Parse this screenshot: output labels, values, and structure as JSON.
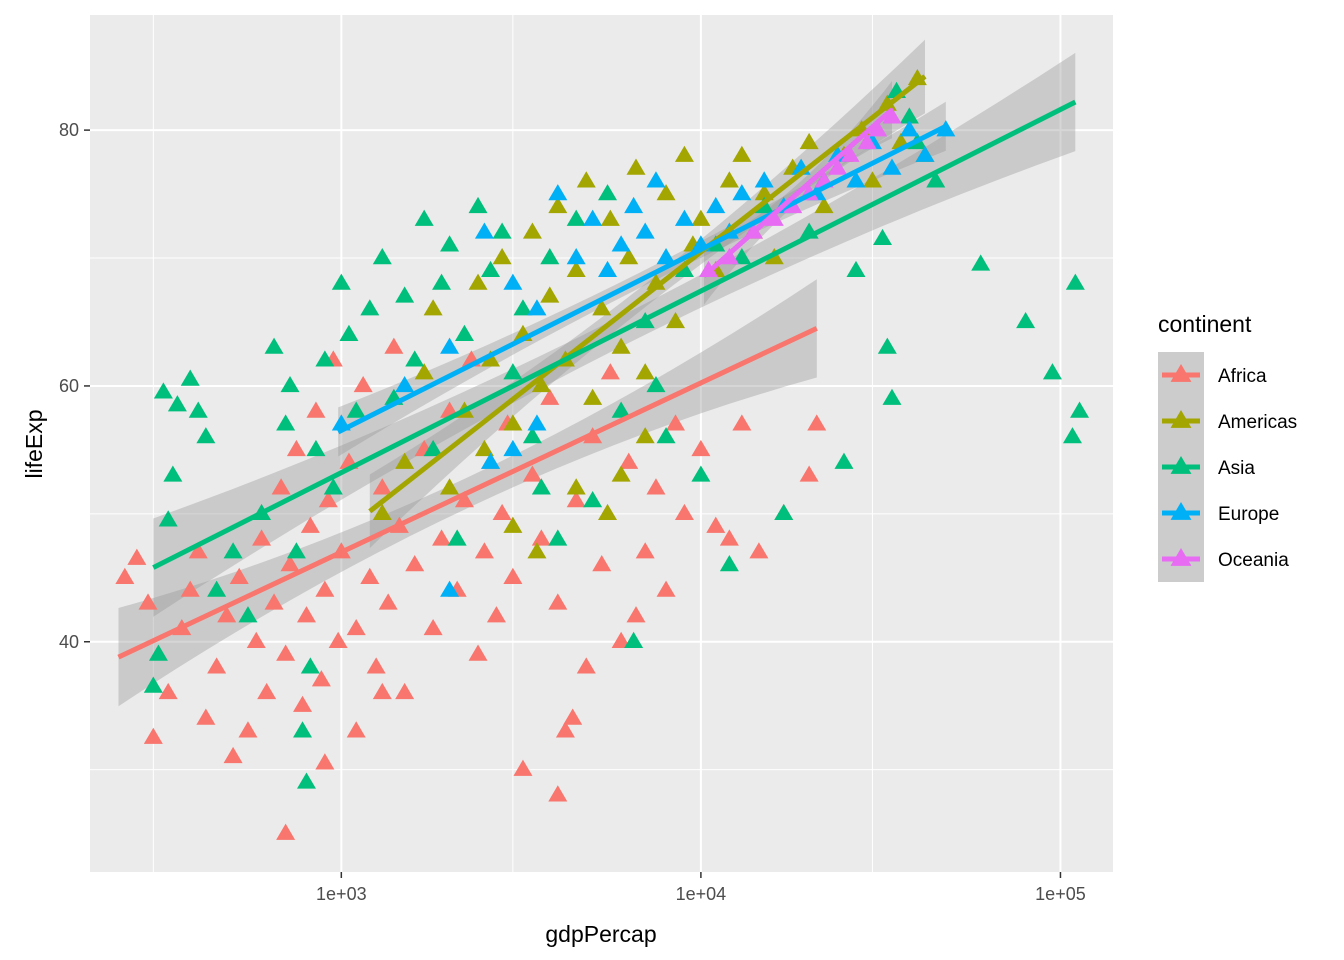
{
  "chart_data": {
    "type": "scatter",
    "title": "",
    "xlabel": "gdpPercap",
    "ylabel": "lifeExp",
    "x_scale": "log10",
    "xlim": [
      200,
      140000
    ],
    "ylim": [
      22,
      89
    ],
    "x_ticks": [
      {
        "value": 1000,
        "label": "1e+03"
      },
      {
        "value": 10000,
        "label": "1e+04"
      },
      {
        "value": 100000,
        "label": "1e+05"
      }
    ],
    "y_ticks": [
      {
        "value": 40,
        "label": "40"
      },
      {
        "value": 60,
        "label": "60"
      },
      {
        "value": 80,
        "label": "80"
      }
    ],
    "grid": true,
    "marker": "triangle",
    "legend": {
      "title": "continent",
      "placement": "right"
    },
    "series": [
      {
        "name": "Africa",
        "color": "#F8766D",
        "fit": {
          "x": [
            240,
            21000
          ],
          "y": [
            38.8,
            64.5
          ],
          "band": 1.2
        },
        "points": [
          [
            250,
            45
          ],
          [
            270,
            46.5
          ],
          [
            290,
            43
          ],
          [
            300,
            32.5
          ],
          [
            330,
            36
          ],
          [
            360,
            41
          ],
          [
            380,
            44
          ],
          [
            400,
            47
          ],
          [
            420,
            34
          ],
          [
            450,
            38
          ],
          [
            480,
            42
          ],
          [
            500,
            31
          ],
          [
            520,
            45
          ],
          [
            550,
            33
          ],
          [
            580,
            40
          ],
          [
            600,
            48
          ],
          [
            620,
            36
          ],
          [
            650,
            43
          ],
          [
            680,
            52
          ],
          [
            700,
            39
          ],
          [
            720,
            46
          ],
          [
            750,
            55
          ],
          [
            780,
            35
          ],
          [
            800,
            42
          ],
          [
            820,
            49
          ],
          [
            850,
            58
          ],
          [
            880,
            37
          ],
          [
            900,
            44
          ],
          [
            920,
            51
          ],
          [
            950,
            62
          ],
          [
            980,
            40
          ],
          [
            1000,
            47
          ],
          [
            1050,
            54
          ],
          [
            1100,
            41
          ],
          [
            1150,
            60
          ],
          [
            1200,
            45
          ],
          [
            1250,
            38
          ],
          [
            1300,
            52
          ],
          [
            1350,
            43
          ],
          [
            1400,
            63
          ],
          [
            1450,
            49
          ],
          [
            1500,
            36
          ],
          [
            1600,
            46
          ],
          [
            1700,
            55
          ],
          [
            1800,
            41
          ],
          [
            1900,
            48
          ],
          [
            2000,
            58
          ],
          [
            2100,
            44
          ],
          [
            2200,
            51
          ],
          [
            2300,
            62
          ],
          [
            2400,
            39
          ],
          [
            2500,
            47
          ],
          [
            2600,
            54
          ],
          [
            2700,
            42
          ],
          [
            2800,
            50
          ],
          [
            2900,
            57
          ],
          [
            3000,
            45
          ],
          [
            3200,
            30
          ],
          [
            3400,
            53
          ],
          [
            3600,
            48
          ],
          [
            3800,
            59
          ],
          [
            4000,
            43
          ],
          [
            4200,
            33
          ],
          [
            4500,
            51
          ],
          [
            4800,
            38
          ],
          [
            5000,
            56
          ],
          [
            5300,
            46
          ],
          [
            5600,
            61
          ],
          [
            6000,
            40
          ],
          [
            6300,
            54
          ],
          [
            6600,
            42
          ],
          [
            7000,
            47
          ],
          [
            7500,
            52
          ],
          [
            8000,
            44
          ],
          [
            8500,
            57
          ],
          [
            9000,
            50
          ],
          [
            10000,
            55
          ],
          [
            11000,
            49
          ],
          [
            12000,
            48
          ],
          [
            13000,
            57
          ],
          [
            14500,
            47
          ],
          [
            17000,
            50
          ],
          [
            20000,
            53
          ],
          [
            21000,
            57
          ],
          [
            700,
            25
          ],
          [
            900,
            30.5
          ],
          [
            1100,
            33
          ],
          [
            1300,
            36
          ],
          [
            4000,
            28
          ],
          [
            4400,
            34
          ]
        ]
      },
      {
        "name": "Americas",
        "color": "#A3A500",
        "fit": {
          "x": [
            1200,
            42000
          ],
          "y": [
            50.2,
            84.2
          ],
          "band": 0.9
        },
        "points": [
          [
            1300,
            50
          ],
          [
            1500,
            54
          ],
          [
            1700,
            61
          ],
          [
            1800,
            66
          ],
          [
            2000,
            52
          ],
          [
            2200,
            58
          ],
          [
            2400,
            68
          ],
          [
            2600,
            62
          ],
          [
            2800,
            70
          ],
          [
            3000,
            57
          ],
          [
            3200,
            64
          ],
          [
            3400,
            72
          ],
          [
            3600,
            60
          ],
          [
            3800,
            67
          ],
          [
            4000,
            74
          ],
          [
            4200,
            62
          ],
          [
            4500,
            69
          ],
          [
            4800,
            76
          ],
          [
            5000,
            59
          ],
          [
            5300,
            66
          ],
          [
            5600,
            73
          ],
          [
            6000,
            63
          ],
          [
            6300,
            70
          ],
          [
            6600,
            77
          ],
          [
            7000,
            61
          ],
          [
            7500,
            68
          ],
          [
            8000,
            75
          ],
          [
            8500,
            65
          ],
          [
            9000,
            78
          ],
          [
            9500,
            71
          ],
          [
            10000,
            73
          ],
          [
            11000,
            69
          ],
          [
            12000,
            76
          ],
          [
            13000,
            78
          ],
          [
            14000,
            72
          ],
          [
            15000,
            75
          ],
          [
            16000,
            70
          ],
          [
            18000,
            77
          ],
          [
            20000,
            79
          ],
          [
            22000,
            74
          ],
          [
            25000,
            78
          ],
          [
            28000,
            80
          ],
          [
            30000,
            76
          ],
          [
            33000,
            82
          ],
          [
            36000,
            79
          ],
          [
            40000,
            84
          ],
          [
            42000,
            78
          ],
          [
            5500,
            50
          ],
          [
            6000,
            53
          ],
          [
            7000,
            56
          ],
          [
            3500,
            47
          ],
          [
            2500,
            55
          ],
          [
            4500,
            52
          ],
          [
            3000,
            49
          ]
        ]
      },
      {
        "name": "Asia",
        "color": "#00BF7D",
        "fit": {
          "x": [
            300,
            110000
          ],
          "y": [
            45.8,
            82.2
          ],
          "band": 1.2
        },
        "points": [
          [
            320,
            59.5
          ],
          [
            350,
            58.5
          ],
          [
            380,
            60.5
          ],
          [
            400,
            58
          ],
          [
            420,
            56
          ],
          [
            340,
            53
          ],
          [
            330,
            49.5
          ],
          [
            300,
            36.5
          ],
          [
            310,
            39
          ],
          [
            450,
            44
          ],
          [
            500,
            47
          ],
          [
            550,
            42
          ],
          [
            600,
            50
          ],
          [
            650,
            63
          ],
          [
            700,
            57
          ],
          [
            720,
            60
          ],
          [
            750,
            47
          ],
          [
            780,
            33
          ],
          [
            800,
            29
          ],
          [
            820,
            38
          ],
          [
            850,
            55
          ],
          [
            900,
            62
          ],
          [
            950,
            52
          ],
          [
            1000,
            68
          ],
          [
            1050,
            64
          ],
          [
            1100,
            58
          ],
          [
            1200,
            66
          ],
          [
            1300,
            70
          ],
          [
            1400,
            59
          ],
          [
            1500,
            67
          ],
          [
            1600,
            62
          ],
          [
            1700,
            73
          ],
          [
            1800,
            55
          ],
          [
            1900,
            68
          ],
          [
            2000,
            71
          ],
          [
            2100,
            48
          ],
          [
            2200,
            64
          ],
          [
            2400,
            74
          ],
          [
            2600,
            69
          ],
          [
            2800,
            72
          ],
          [
            3000,
            61
          ],
          [
            3200,
            66
          ],
          [
            3400,
            56
          ],
          [
            3600,
            52
          ],
          [
            3800,
            70
          ],
          [
            4000,
            48
          ],
          [
            4500,
            73
          ],
          [
            5000,
            51
          ],
          [
            5500,
            75
          ],
          [
            6000,
            58
          ],
          [
            6500,
            40
          ],
          [
            7000,
            65
          ],
          [
            7500,
            60
          ],
          [
            8000,
            56
          ],
          [
            9000,
            69
          ],
          [
            10000,
            53
          ],
          [
            11000,
            71
          ],
          [
            12000,
            46
          ],
          [
            13000,
            70
          ],
          [
            15000,
            74
          ],
          [
            17000,
            50
          ],
          [
            20000,
            72
          ],
          [
            22000,
            76
          ],
          [
            25000,
            54
          ],
          [
            27000,
            69
          ],
          [
            32000,
            71.5
          ],
          [
            33000,
            63
          ],
          [
            34000,
            59
          ],
          [
            45000,
            76
          ],
          [
            60000,
            69.5
          ],
          [
            80000,
            65
          ],
          [
            95000,
            61
          ],
          [
            108000,
            56
          ],
          [
            110000,
            68
          ],
          [
            113000,
            58
          ],
          [
            40000,
            79
          ],
          [
            35000,
            83
          ],
          [
            38000,
            81
          ]
        ]
      },
      {
        "name": "Europe",
        "color": "#00B0F6",
        "fit": {
          "x": [
            980,
            48000
          ],
          "y": [
            56.4,
            80.3
          ],
          "band": 0.6
        },
        "points": [
          [
            1000,
            57
          ],
          [
            1500,
            60
          ],
          [
            2000,
            63
          ],
          [
            2500,
            72
          ],
          [
            3000,
            68
          ],
          [
            3500,
            66
          ],
          [
            4000,
            75
          ],
          [
            4500,
            70
          ],
          [
            5000,
            73
          ],
          [
            5500,
            69
          ],
          [
            6000,
            71
          ],
          [
            6500,
            74
          ],
          [
            7000,
            72
          ],
          [
            7500,
            76
          ],
          [
            8000,
            70
          ],
          [
            9000,
            73
          ],
          [
            10000,
            71
          ],
          [
            11000,
            74
          ],
          [
            12000,
            72
          ],
          [
            13000,
            75
          ],
          [
            15000,
            76
          ],
          [
            17000,
            74
          ],
          [
            19000,
            77
          ],
          [
            21000,
            75
          ],
          [
            24000,
            78
          ],
          [
            27000,
            76
          ],
          [
            30000,
            79
          ],
          [
            34000,
            77
          ],
          [
            38000,
            80
          ],
          [
            42000,
            78
          ],
          [
            48000,
            80
          ],
          [
            3000,
            55
          ],
          [
            2000,
            44
          ],
          [
            2600,
            54
          ],
          [
            3500,
            57
          ]
        ]
      },
      {
        "name": "Oceania",
        "color": "#E76BF3",
        "fit": {
          "x": [
            10200,
            34000
          ],
          "y": [
            68.6,
            81.6
          ],
          "band": 0.7
        },
        "points": [
          [
            10500,
            69
          ],
          [
            12000,
            70
          ],
          [
            14000,
            72
          ],
          [
            16000,
            73
          ],
          [
            18000,
            74
          ],
          [
            20000,
            75
          ],
          [
            22000,
            76
          ],
          [
            24000,
            77
          ],
          [
            26000,
            78
          ],
          [
            29000,
            79
          ],
          [
            31000,
            80
          ],
          [
            34000,
            81
          ]
        ]
      }
    ]
  }
}
